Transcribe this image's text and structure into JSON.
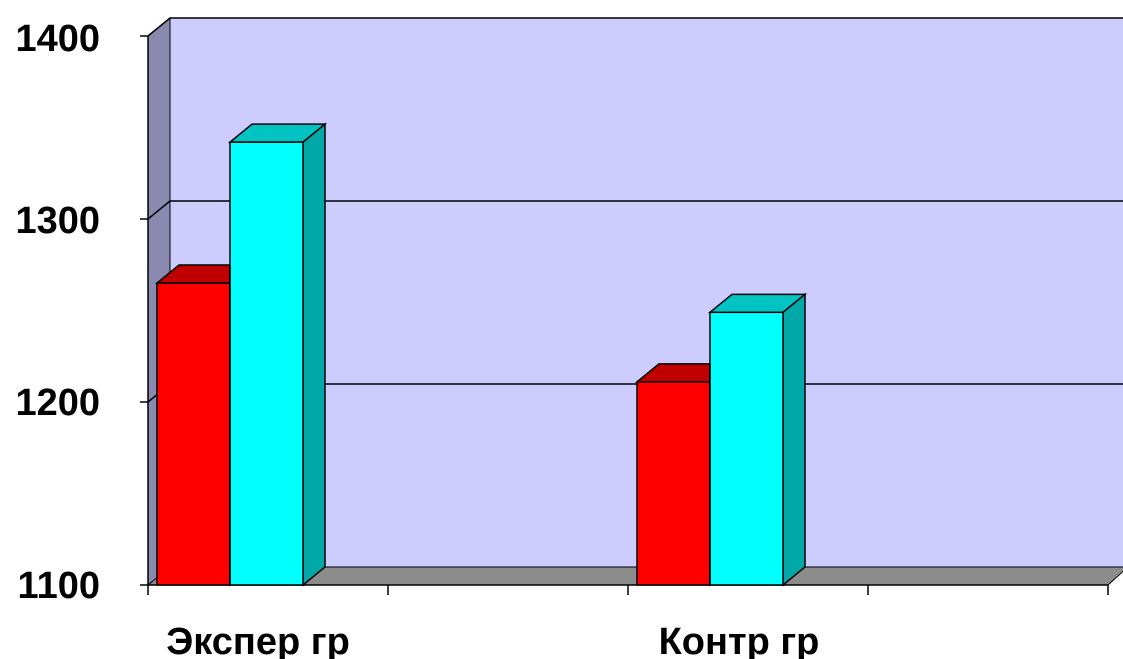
{
  "chart_data": {
    "type": "bar",
    "categories": [
      "Экспер гр",
      "Контр гр"
    ],
    "series": [
      {
        "values": [
          1265,
          1211
        ]
      },
      {
        "values": [
          1342,
          1249
        ]
      }
    ],
    "ylim": [
      1100,
      1400
    ],
    "yticks": [
      "1100",
      "1200",
      "1300",
      "1400"
    ],
    "title": "",
    "xlabel": "",
    "ylabel": "",
    "grid": true,
    "legend": "none",
    "colors": {
      "series": [
        "#ff0000",
        "#00ffff"
      ],
      "series_top": [
        "#c00000",
        "#00c4c4"
      ],
      "series_side": [
        "#9c0000",
        "#00a8a8"
      ],
      "back_wall": "#ccccff",
      "side_wall": "#8a8ab0",
      "floor": "#8c8c8c"
    }
  }
}
